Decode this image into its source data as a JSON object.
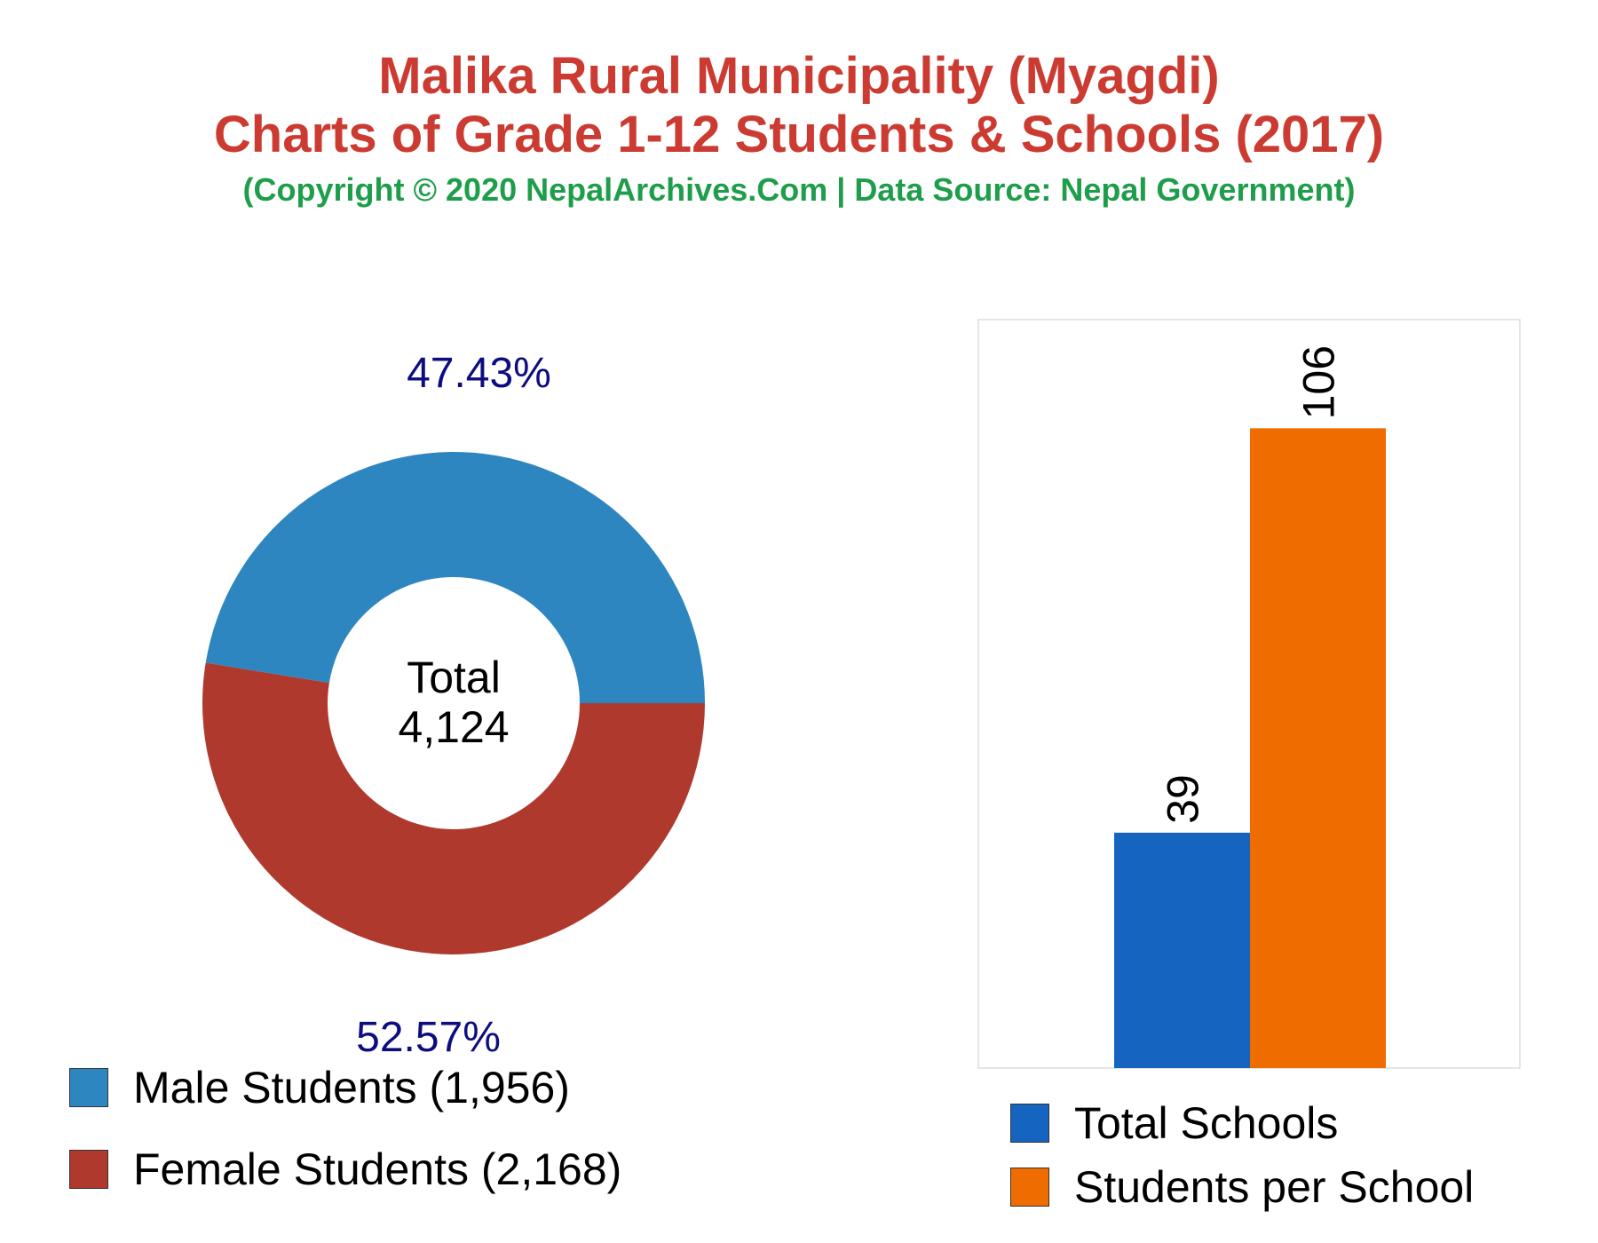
{
  "header": {
    "title_line1": "Malika Rural Municipality (Myagdi)",
    "title_line2": "Charts of Grade 1-12 Students & Schools (2017)",
    "copyright": "(Copyright © 2020 NepalArchives.Com | Data Source: Nepal Government)"
  },
  "colors": {
    "title": "#cc3b32",
    "copyright": "#1e9e4a",
    "pct_label": "#0d0d80",
    "male": "#2e86c1",
    "female": "#b0392e",
    "schools": "#1565c0",
    "per_school": "#ef6c00"
  },
  "chart_data": [
    {
      "type": "pie",
      "variant": "donut",
      "center_label": {
        "line1": "Total",
        "line2": "4,124"
      },
      "slices": [
        {
          "name": "Male Students",
          "value": 1956,
          "percent_label": "47.43%",
          "color": "#2e86c1"
        },
        {
          "name": "Female Students",
          "value": 2168,
          "percent_label": "52.57%",
          "color": "#b0392e"
        }
      ],
      "legend": [
        {
          "label": "Male Students (1,956)",
          "color": "#2e86c1"
        },
        {
          "label": "Female Students (2,168)",
          "color": "#b0392e"
        }
      ],
      "legend_position": "bottom-left"
    },
    {
      "type": "bar",
      "categories": [
        "Total Schools",
        "Students per School"
      ],
      "values": [
        39,
        106
      ],
      "value_labels": [
        "39",
        "106"
      ],
      "colors": [
        "#1565c0",
        "#ef6c00"
      ],
      "ylim": [
        0,
        124
      ],
      "grid": false,
      "legend": [
        {
          "label": "Total Schools",
          "color": "#1565c0"
        },
        {
          "label": "Students per School",
          "color": "#ef6c00"
        }
      ],
      "legend_position": "bottom"
    }
  ]
}
